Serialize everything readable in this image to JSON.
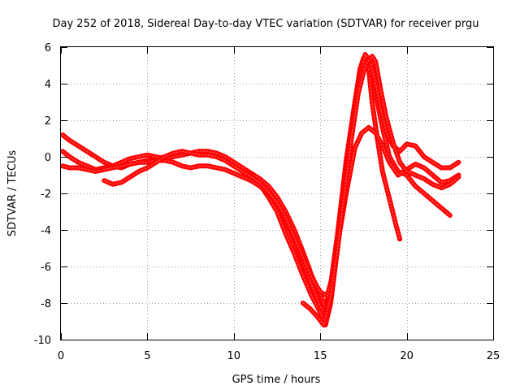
{
  "chart_data": {
    "type": "scatter",
    "title": "Day 252 of 2018, Sidereal Day-to-day VTEC variation (SDTVAR) for receiver prgu",
    "xlabel": "GPS time / hours",
    "ylabel": "SDTVAR / TECUs",
    "xlim": [
      0,
      25
    ],
    "ylim": [
      -10,
      6
    ],
    "xticks": [
      0,
      5,
      10,
      15,
      20,
      25
    ],
    "yticks": [
      -10,
      -8,
      -6,
      -4,
      -2,
      0,
      2,
      4,
      6
    ],
    "grid": true,
    "marker": "+",
    "color": "#ff0000",
    "series": [
      {
        "name": "track-1",
        "x": [
          0.1,
          0.5,
          1.0,
          1.5,
          2.0,
          2.5,
          3.0,
          3.5,
          4.0,
          4.5,
          5.0,
          5.5,
          6.0,
          6.5,
          7.0,
          7.5,
          8.0,
          8.5,
          9.0,
          9.5,
          10.0,
          10.5,
          11.0,
          11.5,
          12.0,
          12.5,
          13.0,
          13.5,
          14.0,
          14.5,
          15.0,
          15.3,
          15.6,
          16.0,
          16.5,
          17.0,
          17.3,
          17.5,
          17.8,
          18.0,
          18.3,
          18.6,
          19.0,
          19.4,
          19.6
        ],
        "y": [
          1.2,
          0.9,
          0.6,
          0.3,
          0.0,
          -0.3,
          -0.5,
          -0.6,
          -0.4,
          -0.3,
          -0.2,
          -0.1,
          0.0,
          0.1,
          0.2,
          0.2,
          0.3,
          0.2,
          0.1,
          0.0,
          -0.3,
          -0.6,
          -0.9,
          -1.2,
          -1.6,
          -2.2,
          -3.0,
          -4.0,
          -5.2,
          -6.5,
          -7.5,
          -8.3,
          -7.0,
          -4.2,
          -0.2,
          3.0,
          4.8,
          5.4,
          4.8,
          3.0,
          1.0,
          -0.8,
          -2.3,
          -3.8,
          -4.5
        ]
      },
      {
        "name": "track-2",
        "x": [
          0.1,
          0.5,
          1.0,
          1.5,
          2.0,
          2.5,
          3.0,
          3.5,
          4.0,
          4.5,
          5.0,
          5.5,
          6.0,
          6.5,
          7.0,
          7.5,
          8.0,
          8.5,
          9.0,
          9.5,
          10.0,
          10.5,
          11.0,
          11.5,
          12.0,
          12.5,
          13.0,
          13.5,
          14.0,
          14.5,
          15.0,
          15.3,
          15.6,
          16.0,
          16.5,
          17.0,
          17.3,
          17.6,
          18.0,
          18.3,
          18.6,
          19.0,
          19.5,
          20.0,
          20.5,
          21.0,
          21.5,
          22.0,
          22.5
        ],
        "y": [
          0.3,
          0.0,
          -0.3,
          -0.5,
          -0.7,
          -0.6,
          -0.5,
          -0.3,
          -0.1,
          0.0,
          0.1,
          0.0,
          -0.1,
          0.0,
          0.1,
          0.2,
          0.3,
          0.3,
          0.2,
          0.0,
          -0.3,
          -0.6,
          -1.0,
          -1.5,
          -2.2,
          -3.0,
          -4.2,
          -5.3,
          -6.5,
          -7.6,
          -8.5,
          -9.2,
          -8.0,
          -5.0,
          -1.0,
          2.5,
          4.4,
          5.2,
          4.4,
          3.0,
          1.6,
          0.0,
          -0.8,
          -1.0,
          -1.6,
          -2.0,
          -2.4,
          -2.8,
          -3.2
        ]
      },
      {
        "name": "track-3",
        "x": [
          0.1,
          0.5,
          1.0,
          1.5,
          2.0,
          2.5,
          3.0,
          3.5,
          4.0,
          4.5,
          5.0,
          5.5,
          6.0,
          6.5,
          7.0,
          7.5,
          8.0,
          8.5,
          9.0,
          9.5,
          10.0,
          10.5,
          11.0,
          11.5,
          12.0,
          12.5,
          13.0,
          13.5,
          14.0,
          14.5,
          15.0,
          15.3,
          15.6,
          16.0,
          16.5,
          17.0,
          17.4,
          17.8,
          18.2,
          18.6,
          19.0,
          19.5,
          20.0,
          20.5,
          21.0,
          21.5,
          22.0,
          22.5,
          23.0
        ],
        "y": [
          -0.5,
          -0.6,
          -0.6,
          -0.7,
          -0.8,
          -0.7,
          -0.6,
          -0.5,
          -0.4,
          -0.3,
          -0.3,
          -0.2,
          -0.2,
          -0.3,
          -0.5,
          -0.6,
          -0.5,
          -0.5,
          -0.6,
          -0.7,
          -0.9,
          -1.1,
          -1.3,
          -1.6,
          -2.0,
          -2.6,
          -3.5,
          -4.6,
          -5.8,
          -7.0,
          -8.2,
          -8.6,
          -7.3,
          -4.8,
          -2.0,
          0.5,
          1.3,
          1.6,
          1.3,
          0.6,
          -0.3,
          -1.0,
          -0.7,
          -0.4,
          -0.6,
          -1.0,
          -1.4,
          -1.3,
          -1.0
        ]
      },
      {
        "name": "track-4",
        "x": [
          2.5,
          3.0,
          3.5,
          4.0,
          4.5,
          5.0,
          5.5,
          6.0,
          6.5,
          7.0,
          7.5,
          8.0,
          8.5,
          9.0,
          9.5,
          10.0,
          10.5,
          11.0,
          11.5,
          12.0,
          12.5,
          13.0,
          13.5,
          14.0,
          14.5,
          15.0,
          15.4,
          15.8,
          16.2,
          16.6,
          17.0,
          17.4,
          17.6,
          17.9,
          18.2,
          18.5,
          18.8,
          19.2,
          19.6,
          20.0,
          20.5,
          21.0,
          21.5,
          22.0,
          22.5,
          23.0
        ],
        "y": [
          -1.3,
          -1.5,
          -1.4,
          -1.1,
          -0.8,
          -0.6,
          -0.3,
          0.0,
          0.2,
          0.3,
          0.2,
          0.1,
          0.1,
          0.0,
          -0.2,
          -0.5,
          -0.8,
          -1.1,
          -1.4,
          -1.9,
          -2.5,
          -3.3,
          -4.4,
          -5.5,
          -6.6,
          -7.4,
          -7.6,
          -6.2,
          -3.0,
          0.0,
          2.6,
          4.8,
          5.6,
          5.2,
          4.0,
          2.6,
          1.4,
          0.6,
          0.3,
          0.7,
          0.6,
          0.0,
          -0.3,
          -0.6,
          -0.6,
          -0.3
        ]
      },
      {
        "name": "track-5",
        "x": [
          14.0,
          14.4,
          14.8,
          15.2,
          15.6,
          16.0,
          16.4,
          16.8,
          17.2,
          17.6,
          18.0,
          18.2,
          18.5,
          18.8,
          19.2,
          19.6,
          20.0,
          20.5,
          21.0,
          21.5,
          22.0,
          22.5,
          23.0
        ],
        "y": [
          -8.0,
          -8.3,
          -8.7,
          -9.2,
          -7.6,
          -5.0,
          -2.0,
          1.0,
          3.5,
          5.0,
          5.5,
          5.2,
          3.6,
          2.2,
          0.8,
          -0.3,
          -0.8,
          -1.0,
          -1.2,
          -1.5,
          -1.7,
          -1.5,
          -1.1
        ]
      }
    ]
  }
}
